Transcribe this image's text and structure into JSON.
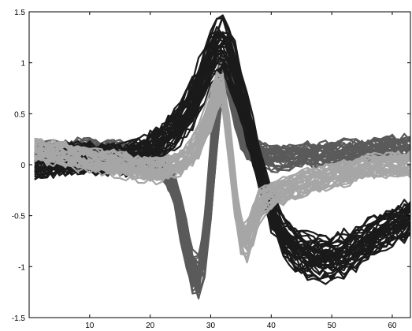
{
  "chart_data": {
    "type": "line",
    "title": "",
    "xlabel": "",
    "ylabel": "",
    "xlim": [
      0,
      63
    ],
    "ylim": [
      -1.5,
      1.5
    ],
    "xticks": [
      10,
      20,
      30,
      40,
      50,
      60
    ],
    "yticks": [
      1.5,
      1,
      0.5,
      0,
      -0.5,
      -1,
      -1.5
    ],
    "xtick_labels": [
      "10",
      "20",
      "30",
      "40",
      "50",
      "60"
    ],
    "ytick_labels": [
      "1.5",
      "1",
      "0.5",
      "0",
      "-0.5",
      "-1",
      "-1.5"
    ],
    "grid": false,
    "legend": "none",
    "series": [
      {
        "color": "#1a1a1a",
        "count": 40,
        "spread": 0.12,
        "x": [
          1,
          4,
          8,
          12,
          16,
          20,
          22,
          24,
          26,
          28,
          30,
          31,
          32,
          33,
          34,
          36,
          38,
          40,
          42,
          44,
          46,
          48,
          50,
          52,
          54,
          56,
          58,
          60,
          62,
          63
        ],
        "values": [
          0.0,
          0.05,
          0.08,
          0.05,
          0.05,
          0.15,
          0.25,
          0.35,
          0.5,
          0.75,
          1.05,
          1.17,
          1.2,
          1.1,
          0.92,
          0.45,
          -0.05,
          -0.45,
          -0.7,
          -0.82,
          -0.88,
          -0.9,
          -0.9,
          -0.86,
          -0.8,
          -0.73,
          -0.65,
          -0.6,
          -0.55,
          -0.5
        ]
      },
      {
        "color": "#5a5a5a",
        "count": 35,
        "spread": 0.1,
        "x": [
          1,
          5,
          10,
          15,
          20,
          22,
          24,
          25,
          26,
          27,
          28,
          29,
          30,
          31,
          32,
          33,
          34,
          35,
          36,
          38,
          40,
          45,
          50,
          55,
          60,
          63
        ],
        "values": [
          0.1,
          0.1,
          0.12,
          0.1,
          0.05,
          0.0,
          -0.2,
          -0.45,
          -0.75,
          -1.05,
          -1.12,
          -0.85,
          -0.25,
          0.45,
          0.95,
          0.85,
          0.55,
          0.3,
          0.15,
          0.1,
          0.05,
          0.08,
          0.1,
          0.12,
          0.15,
          0.15
        ]
      },
      {
        "color": "#a6a6a6",
        "count": 35,
        "spread": 0.1,
        "x": [
          1,
          5,
          10,
          15,
          20,
          22,
          24,
          26,
          28,
          30,
          31,
          32,
          33,
          34,
          35,
          36,
          37,
          38,
          40,
          44,
          48,
          52,
          56,
          60,
          63
        ],
        "values": [
          0.15,
          0.1,
          0.05,
          0.0,
          -0.05,
          -0.05,
          0.0,
          0.05,
          0.2,
          0.5,
          0.75,
          0.8,
          0.25,
          -0.35,
          -0.72,
          -0.8,
          -0.6,
          -0.4,
          -0.3,
          -0.22,
          -0.15,
          -0.08,
          -0.03,
          0.0,
          0.0
        ]
      }
    ]
  }
}
